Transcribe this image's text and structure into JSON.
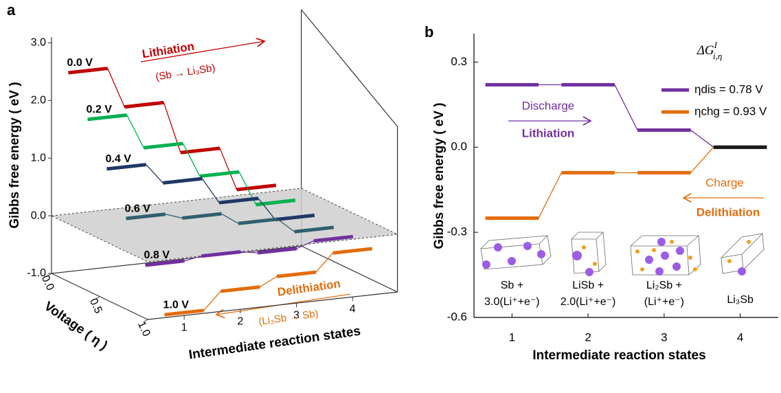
{
  "chart_data": [
    {
      "type": "step3d",
      "panel": "a",
      "zlabel": "Gibbs free energy ( eV )",
      "ylabel": "Voltage ( η )",
      "xlabel": "Intermediate reaction states",
      "x": [
        1,
        2,
        3,
        4
      ],
      "xlim": [
        0.35,
        4.8
      ],
      "xticks": [
        1,
        2,
        3,
        4
      ],
      "ylim": [
        0,
        1
      ],
      "yticks": [
        {
          "value": 0,
          "label": "0.0"
        },
        {
          "value": 0.5,
          "label": "0.5"
        },
        {
          "value": 1,
          "label": "1.0"
        }
      ],
      "zlim": [
        -1,
        3.1
      ],
      "zticks": [
        {
          "value": -1,
          "label": "-1.0"
        },
        {
          "value": 0,
          "label": "0.0"
        },
        {
          "value": 1,
          "label": "1.0"
        },
        {
          "value": 2,
          "label": "2.0"
        },
        {
          "value": 3,
          "label": "3.0"
        }
      ],
      "series": [
        {
          "name": "0.0 V",
          "voltage": 0,
          "color": "#c00000",
          "values": [
            2.45,
            1.75,
            0.85,
            0.1
          ]
        },
        {
          "name": "0.2 V",
          "voltage": 0.2,
          "color": "#00b050",
          "values": [
            1.8,
            1.2,
            0.6,
            0.0
          ]
        },
        {
          "name": "0.4 V",
          "voltage": 0.4,
          "color": "#1f3864",
          "values": [
            1.1,
            0.75,
            0.3,
            -0.1
          ]
        },
        {
          "name": "0.6 V",
          "voltage": 0.6,
          "color": "#2f5f6f",
          "values": [
            0.4,
            0.3,
            0.1,
            -0.15
          ]
        },
        {
          "name": "0.8 V",
          "voltage": 0.8,
          "color": "#7030a0",
          "values": [
            -0.25,
            -0.2,
            -0.25,
            -0.15
          ]
        },
        {
          "name": "1.0 V",
          "voltage": 1,
          "color": "#e36c0a",
          "values": [
            -0.95,
            -0.65,
            -0.5,
            -0.2
          ]
        }
      ],
      "annotations": [
        {
          "text": "Lithiation",
          "color": "#c00000"
        },
        {
          "text": "(Sb → Li₃Sb)",
          "color": "#c00000"
        },
        {
          "text": "Delithiation",
          "color": "#e36c0a"
        },
        {
          "text": "(Li₃Sb → Sb)",
          "color": "#e36c0a"
        }
      ]
    },
    {
      "type": "step",
      "panel": "b",
      "ylabel": "Gibbs free energy ( eV )",
      "xlabel": "Intermediate reaction states",
      "x": [
        1,
        2,
        3,
        4
      ],
      "xlim": [
        0.5,
        4.5
      ],
      "xticks": [
        1,
        2,
        3,
        4
      ],
      "ylim": [
        -0.6,
        0.4
      ],
      "yticks": [
        0.3,
        {
          "value": 0,
          "label": "0.0"
        },
        -0.3,
        -0.6
      ],
      "legend_title": {
        "base": "ΔG",
        "sup": "I",
        "sub": "i,η"
      },
      "legend": "upper right",
      "final_state_color": "#1a1a1a",
      "series": [
        {
          "name": "ηdis = 0.78 V",
          "color": "#7030a0",
          "values": [
            0.22,
            0.22,
            0.06,
            0
          ]
        },
        {
          "name": "ηchg = 0.93 V",
          "color": "#e36c0a",
          "values": [
            -0.25,
            -0.09,
            -0.09,
            0
          ]
        }
      ],
      "annotations": [
        {
          "text": "Discharge",
          "color": "#7030a0"
        },
        {
          "text": "Lithiation",
          "color": "#7030a0"
        },
        {
          "text": "Charge",
          "color": "#e36c0a"
        },
        {
          "text": "Delithiation",
          "color": "#e36c0a"
        }
      ],
      "state_labels": [
        [
          "Sb +",
          "3.0(Li⁺+e⁻)"
        ],
        [
          "LiSb +",
          "2.0(Li⁺+e⁻)"
        ],
        [
          "Li₂Sb +",
          "(Li⁺+e⁻)"
        ],
        [
          "Li₃Sb"
        ]
      ]
    }
  ]
}
